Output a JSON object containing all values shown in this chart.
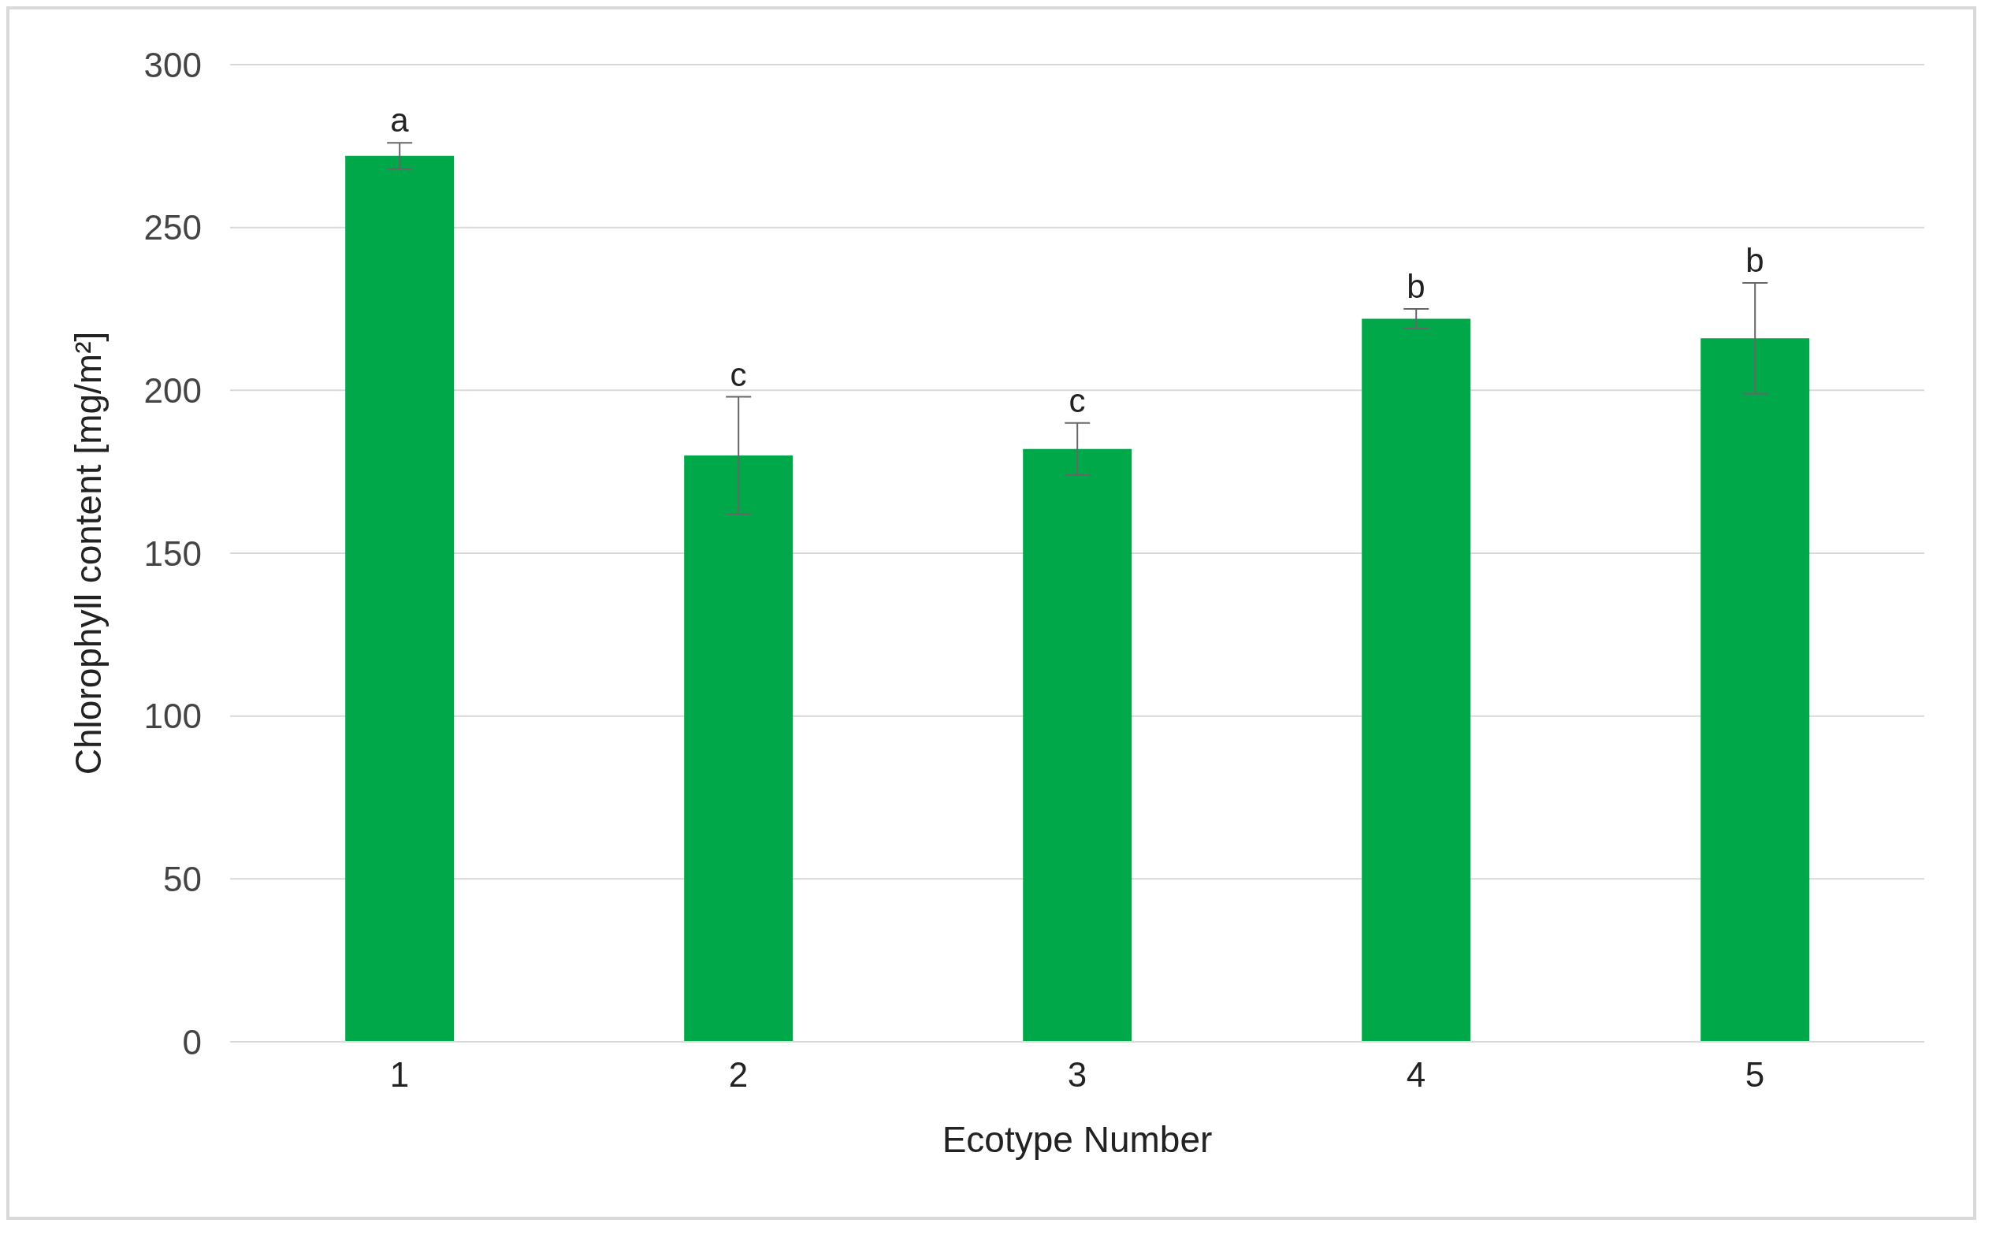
{
  "chart_data": {
    "type": "bar",
    "xlabel": "Ecotype Number",
    "ylabel": "Chlorophyll content [mg/m²]",
    "categories": [
      "1",
      "2",
      "3",
      "4",
      "5"
    ],
    "series": [
      {
        "color": "#00a84a",
        "values": [
          272,
          180,
          182,
          222,
          216
        ],
        "errors": [
          4,
          18,
          8,
          3,
          17
        ]
      }
    ],
    "ylim": [
      0,
      300
    ],
    "yticks": [
      0,
      50,
      100,
      150,
      200,
      250,
      300
    ],
    "grid": "y",
    "annotations": [
      {
        "text": "a",
        "x": "1",
        "y": 276
      },
      {
        "text": "c",
        "x": "2",
        "y": 198
      },
      {
        "text": "c",
        "x": "3",
        "y": 190
      },
      {
        "text": "b",
        "x": "4",
        "y": 225
      },
      {
        "text": "b",
        "x": "5",
        "y": 233
      }
    ]
  }
}
